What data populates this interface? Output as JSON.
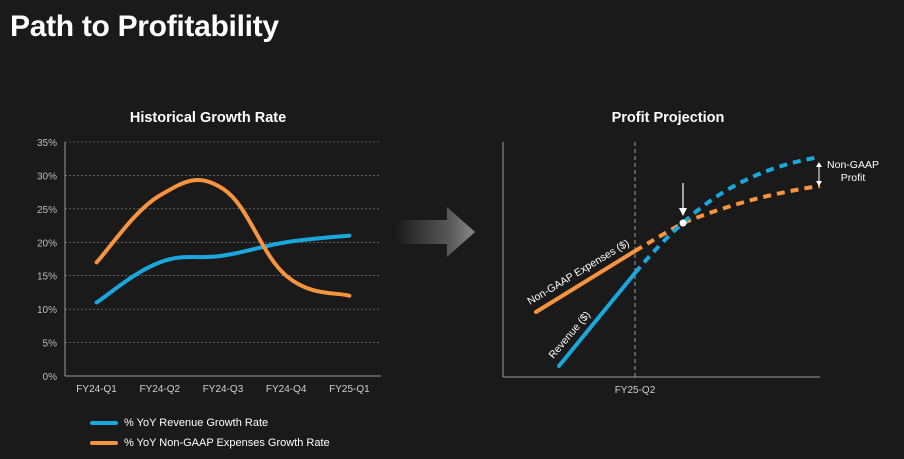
{
  "title": "Path to Profitability",
  "colors": {
    "revenue": "#1aa7dd",
    "expenses": "#f7943d",
    "axis": "#9a9a9a",
    "grid": "#8a8a8a",
    "text": "#ffffff",
    "tick": "#cfcfcf"
  },
  "chart_data": [
    {
      "type": "line",
      "title": "Historical Growth Rate",
      "categories": [
        "FY24-Q1",
        "FY24-Q2",
        "FY24-Q3",
        "FY24-Q4",
        "FY25-Q1"
      ],
      "ylim": [
        0,
        35
      ],
      "yticks": [
        0,
        5,
        10,
        15,
        20,
        25,
        30,
        35
      ],
      "ytick_labels": [
        "0%",
        "5%",
        "10%",
        "15%",
        "20%",
        "25%",
        "30%",
        "35%"
      ],
      "series": [
        {
          "name": "% YoY Revenue Growth Rate",
          "color": "#1aa7dd",
          "values": [
            11,
            17,
            18,
            20,
            21
          ]
        },
        {
          "name": "% YoY Non-GAAP Expenses Growth Rate",
          "color": "#f7943d",
          "values": [
            17,
            27,
            28,
            15,
            12
          ]
        }
      ],
      "legend_position": "bottom-left",
      "grid": true
    },
    {
      "type": "line",
      "title": "Profit Projection",
      "x_marker_label": "FY25-Q2",
      "line_labels": {
        "expenses": "Non-GAAP Expenses ($)",
        "revenue": "Revenue ($)"
      },
      "annotation": "Non-GAAP\nProfit",
      "annotation_lines": [
        "Non-GAAP",
        "Profit"
      ],
      "series": [
        {
          "name": "Non-GAAP Expenses ($)",
          "color": "#f7943d"
        },
        {
          "name": "Revenue ($)",
          "color": "#1aa7dd"
        }
      ]
    }
  ]
}
